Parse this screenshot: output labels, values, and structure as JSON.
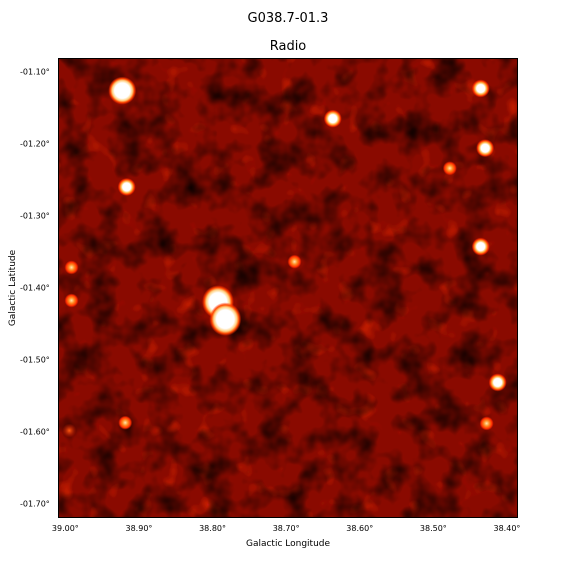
{
  "figure": {
    "suptitle": "G038.7-01.3",
    "panel_title": "Radio",
    "xlabel": "Galactic Longitude",
    "ylabel": "Galactic Latitude",
    "colormap": "gist_heat",
    "colors": {
      "dark": "#000000",
      "mid": "#8a0a00",
      "bright": "#ff3a00",
      "peak": "#ffffff"
    }
  },
  "axes": {
    "x_ticks": [
      "39.00°",
      "38.90°",
      "38.80°",
      "38.70°",
      "38.60°",
      "38.50°",
      "38.40°"
    ],
    "y_ticks": [
      "-01.10°",
      "-01.20°",
      "-01.30°",
      "-01.40°",
      "-01.50°",
      "-01.60°",
      "-01.70°"
    ],
    "x_range": [
      39.01,
      38.385
    ],
    "y_range": [
      -1.08,
      -1.72
    ]
  },
  "sources": [
    {
      "l": 38.924,
      "b": -1.124,
      "size": "large"
    },
    {
      "l": 38.918,
      "b": -1.258,
      "size": "medium"
    },
    {
      "l": 38.638,
      "b": -1.163,
      "size": "medium"
    },
    {
      "l": 38.437,
      "b": -1.121,
      "size": "medium"
    },
    {
      "l": 38.431,
      "b": -1.204,
      "size": "medium"
    },
    {
      "l": 38.479,
      "b": -1.232,
      "size": "small"
    },
    {
      "l": 38.437,
      "b": -1.341,
      "size": "medium"
    },
    {
      "l": 38.69,
      "b": -1.362,
      "size": "small"
    },
    {
      "l": 38.993,
      "b": -1.37,
      "size": "small"
    },
    {
      "l": 38.993,
      "b": -1.416,
      "size": "small"
    },
    {
      "l": 38.794,
      "b": -1.418,
      "size": "extended"
    },
    {
      "l": 38.784,
      "b": -1.442,
      "size": "extended"
    },
    {
      "l": 38.414,
      "b": -1.53,
      "size": "medium"
    },
    {
      "l": 38.92,
      "b": -1.586,
      "size": "small"
    },
    {
      "l": 38.429,
      "b": -1.587,
      "size": "small"
    },
    {
      "l": 38.996,
      "b": -1.597,
      "size": "faint"
    }
  ]
}
